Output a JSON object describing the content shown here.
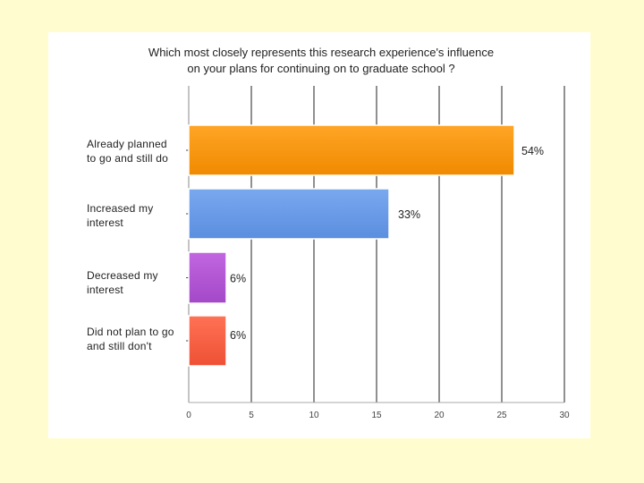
{
  "chart_data": {
    "type": "bar",
    "orientation": "horizontal",
    "title": "Which most closely represents this research experience's influence on your plans for continuing on to graduate school ?",
    "title_lines": [
      "Which most closely represents this research experience's influence",
      "on your plans for continuing on to graduate school ?"
    ],
    "categories": [
      [
        "Already planned",
        "to go and still do"
      ],
      [
        "Increased my",
        "interest"
      ],
      [
        "Decreased my",
        "interest"
      ],
      [
        "Did not plan to go",
        "and still don't"
      ]
    ],
    "values": [
      26,
      16,
      3,
      3
    ],
    "data_labels": [
      "54%",
      "33%",
      "6%",
      "6%"
    ],
    "xlim": [
      0,
      30
    ],
    "xticks": [
      0,
      5,
      10,
      15,
      20,
      25,
      30
    ],
    "xlabel": "",
    "ylabel": "",
    "grid": true,
    "colors": [
      "#f08a00",
      "#5b8ee0",
      "#a348c8",
      "#ef5035"
    ],
    "colors_light": [
      "#ffa526",
      "#7aa8ef",
      "#c266e0",
      "#ff7255"
    ]
  }
}
